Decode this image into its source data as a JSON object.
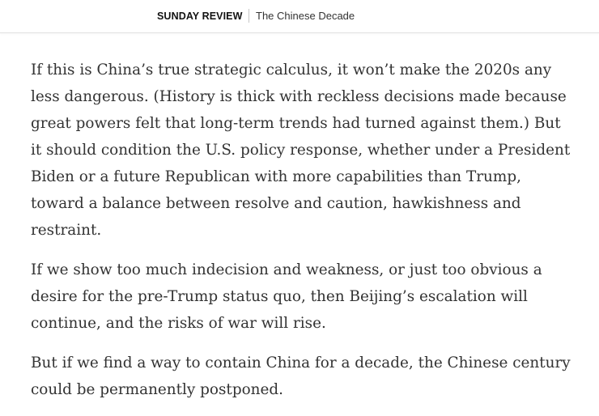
{
  "header": {
    "section": "SUNDAY REVIEW",
    "series": "The Chinese Decade"
  },
  "article": {
    "paragraphs": [
      "If this is China’s true strategic calculus, it won’t make the 2020s any less dangerous. (History is thick with reckless decisions made because great powers felt that long-term trends had turned against them.) But it should condition the U.S. policy response, whether under a President Biden or a future Republican with more capabilities than Trump, toward a balance between resolve and caution, hawkishness and restraint.",
      "If we show too much indecision and weakness, or just too obvious a desire for the pre-Trump status quo, then Beijing’s escalation will continue, and the risks of war will rise.",
      "But if we find a way to contain China for a decade, the Chinese century could be permanently postponed."
    ]
  }
}
